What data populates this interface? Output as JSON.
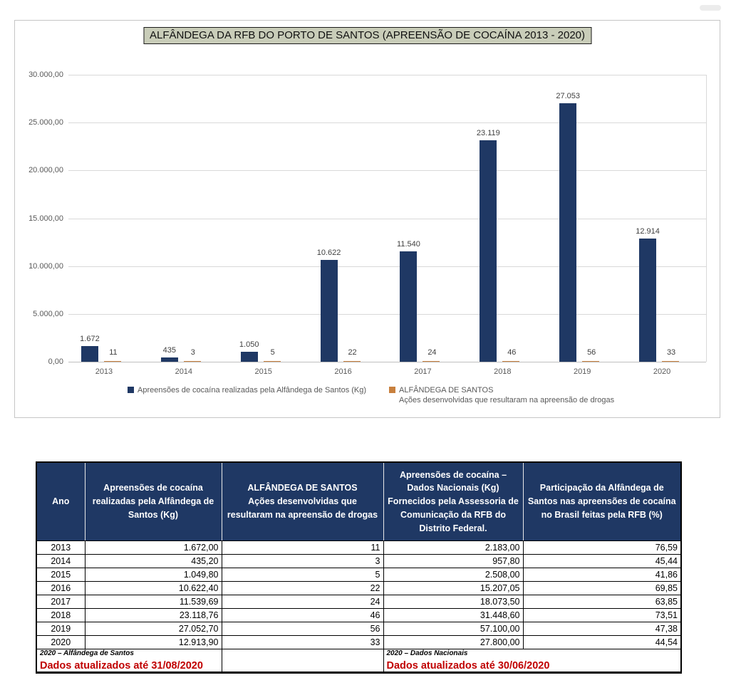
{
  "chart_data": {
    "type": "bar",
    "title": "ALFÂNDEGA DA RFB DO PORTO DE SANTOS  (APREENSÃO DE COCAÍNA 2013 - 2020)",
    "categories": [
      "2013",
      "2014",
      "2015",
      "2016",
      "2017",
      "2018",
      "2019",
      "2020"
    ],
    "series": [
      {
        "name": "Apreensões de cocaína realizadas pela Alfândega de Santos (Kg)",
        "values": [
          1672,
          435,
          1050,
          10622,
          11540,
          23119,
          27053,
          12914
        ],
        "labels": [
          "1.672",
          "435",
          "1.050",
          "10.622",
          "11.540",
          "23.119",
          "27.053",
          "12.914"
        ],
        "color": "#1F3864"
      },
      {
        "name": "ALFÂNDEGA DE SANTOS — Ações desenvolvidas que resultaram na apreensão de drogas",
        "values": [
          11,
          3,
          5,
          22,
          24,
          46,
          56,
          33
        ],
        "labels": [
          "11",
          "3",
          "5",
          "22",
          "24",
          "46",
          "56",
          "33"
        ],
        "color": "#C8803E"
      }
    ],
    "xlabel": "",
    "ylabel": "",
    "ylim": [
      0,
      30000
    ],
    "y_tick_step": 5000,
    "y_tick_labels": [
      "30.000,00",
      "25.000,00",
      "20.000,00",
      "15.000,00",
      "10.000,00",
      "5.000,00",
      "0,00"
    ],
    "grid": true,
    "legend_position": "bottom",
    "legend": [
      {
        "label": "Apreensões de cocaína realizadas pela Alfândega de Santos (Kg)",
        "color": "#1F3864"
      },
      {
        "label": "ALFÂNDEGA DE SANTOS",
        "sublabel": "Ações desenvolvidas que resultaram na apreensão de drogas",
        "color": "#C8803E"
      }
    ],
    "colors": {
      "title_bg": "#C9CDB9",
      "gridline": "#D9D9D9",
      "axis_text": "#595959",
      "bar_label_text": "#404040"
    }
  },
  "table": {
    "headers": [
      "Ano",
      "Apreensões de cocaína\nrealizadas pela Alfândega de\nSantos (Kg)",
      "ALFÂNDEGA DE SANTOS\nAções desenvolvidas que\nresultaram na apreensão de drogas",
      "Apreensões de cocaína –\nDados Nacionais (Kg)\nFornecidos pela Assessoria de\nComunicação da RFB do\nDistrito Federal.",
      "Participação da Alfândega de\nSantos nas apreensões de cocaína\nno Brasil feitas pela RFB (%)"
    ],
    "rows": [
      [
        "2013",
        "1.672,00",
        "11",
        "2.183,00",
        "76,59"
      ],
      [
        "2014",
        "435,20",
        "3",
        "957,80",
        "45,44"
      ],
      [
        "2015",
        "1.049,80",
        "5",
        "2.508,00",
        "41,86"
      ],
      [
        "2016",
        "10.622,40",
        "22",
        "15.207,05",
        "69,85"
      ],
      [
        "2017",
        "11.539,69",
        "24",
        "18.073,50",
        "63,85"
      ],
      [
        "2018",
        "23.118,76",
        "46",
        "31.448,60",
        "73,51"
      ],
      [
        "2019",
        "27.052,70",
        "56",
        "57.100,00",
        "47,38"
      ],
      [
        "2020",
        "12.913,90",
        "33",
        "27.800,00",
        "44,54"
      ]
    ],
    "footer": {
      "left_source": "2020 – Alfândega de Santos",
      "left_update": "Dados atualizados até 31/08/2020",
      "right_source": "2020 – Dados Nacionais",
      "right_update": "Dados atualizados até 30/06/2020"
    },
    "header_bg": "#1F3864",
    "update_text_color": "#C00000"
  }
}
